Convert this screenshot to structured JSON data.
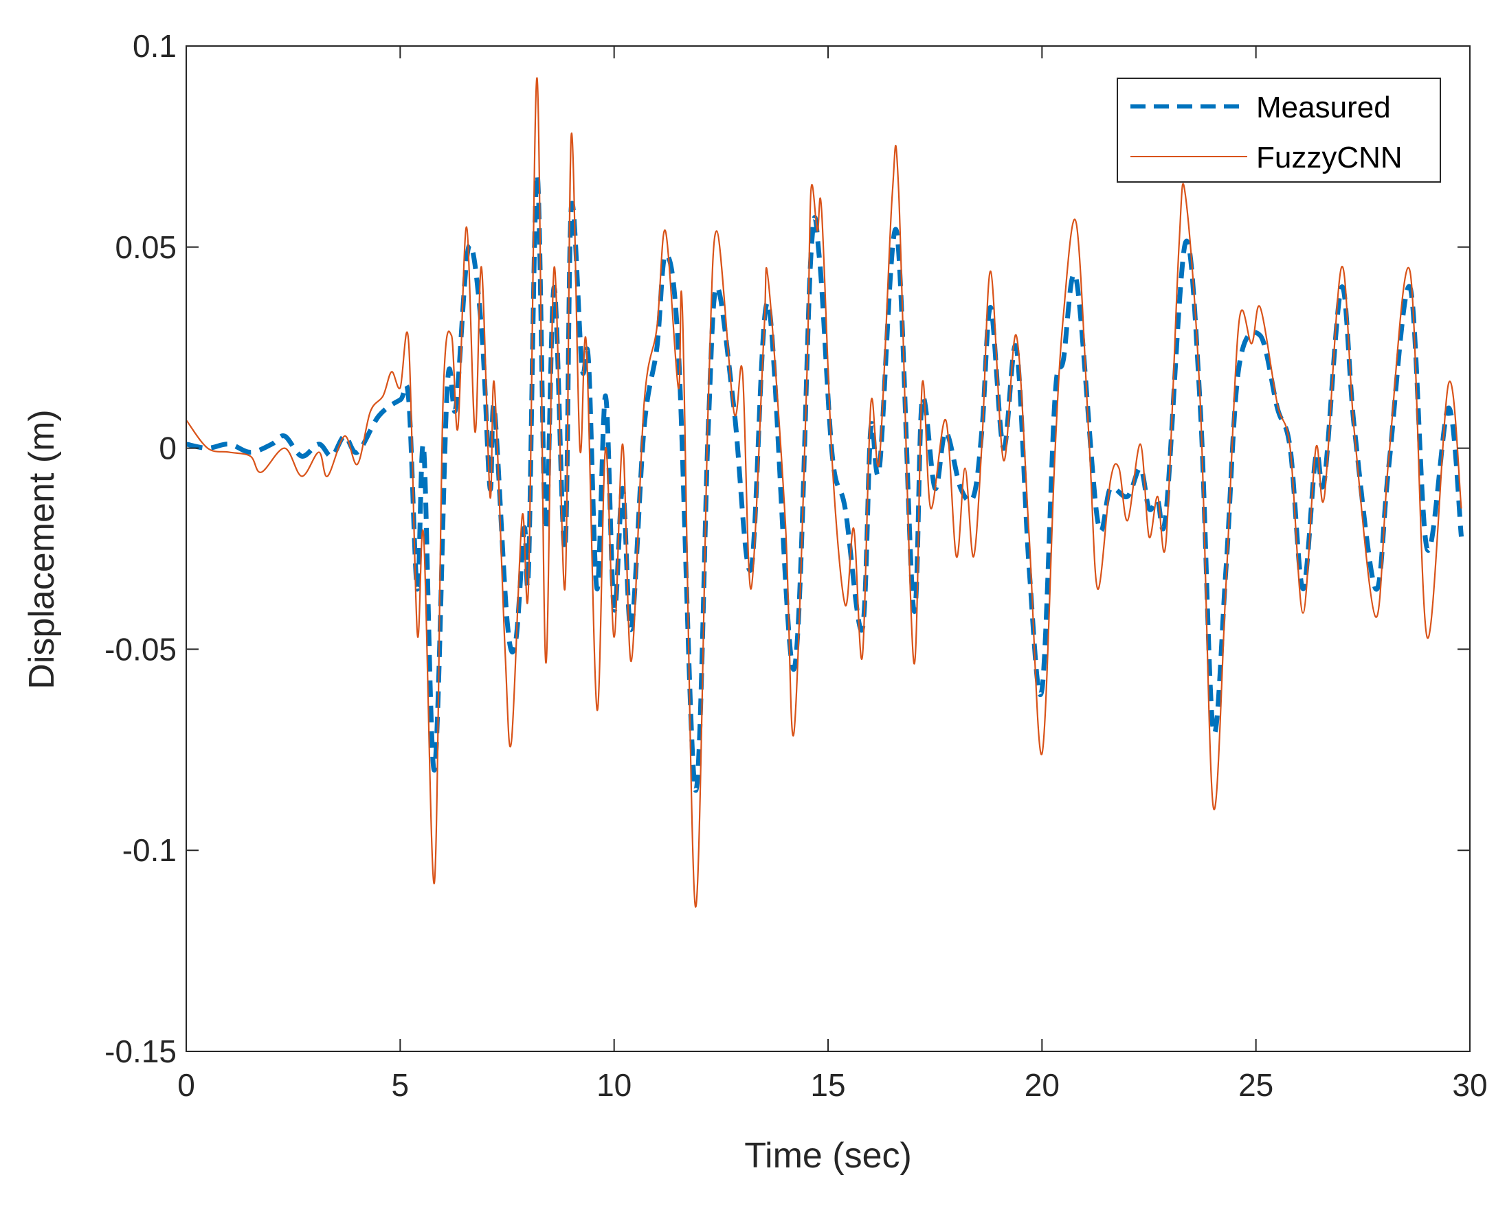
{
  "chart_data": {
    "type": "line",
    "title": "",
    "xlabel": "Time (sec)",
    "ylabel": "Displacement (m)",
    "xlim": [
      0,
      30
    ],
    "ylim": [
      -0.15,
      0.1
    ],
    "xticks": [
      "0",
      "5",
      "10",
      "15",
      "20",
      "25",
      "30"
    ],
    "yticks": [
      "0.1",
      "0.05",
      "0",
      "-0.05",
      "-0.1",
      "-0.15"
    ],
    "grid": false,
    "legend_position": "top-right",
    "series": [
      {
        "name": "Measured",
        "color": "#0072BD",
        "style": "dashed",
        "points": [
          [
            0,
            0.001
          ],
          [
            0.5,
            0
          ],
          [
            1,
            0.001
          ],
          [
            1.5,
            -0.001
          ],
          [
            2,
            0.001
          ],
          [
            2.3,
            0.003
          ],
          [
            2.7,
            -0.002
          ],
          [
            3.1,
            0.001
          ],
          [
            3.4,
            -0.002
          ],
          [
            3.7,
            0.003
          ],
          [
            4.0,
            -0.001
          ],
          [
            4.5,
            0.008
          ],
          [
            5.0,
            0.012
          ],
          [
            5.2,
            0.012
          ],
          [
            5.4,
            -0.035
          ],
          [
            5.55,
            0
          ],
          [
            5.8,
            -0.08
          ],
          [
            6.1,
            0.015
          ],
          [
            6.3,
            0.01
          ],
          [
            6.6,
            0.05
          ],
          [
            6.9,
            0.03
          ],
          [
            7.1,
            -0.01
          ],
          [
            7.2,
            0.01
          ],
          [
            7.5,
            -0.043
          ],
          [
            7.7,
            -0.048
          ],
          [
            7.9,
            -0.02
          ],
          [
            8.0,
            -0.03
          ],
          [
            8.2,
            0.068
          ],
          [
            8.4,
            -0.02
          ],
          [
            8.6,
            0.04
          ],
          [
            8.85,
            -0.025
          ],
          [
            9.0,
            0.06
          ],
          [
            9.25,
            0.02
          ],
          [
            9.4,
            0.022
          ],
          [
            9.6,
            -0.035
          ],
          [
            9.8,
            0.013
          ],
          [
            10.0,
            -0.04
          ],
          [
            10.2,
            -0.01
          ],
          [
            10.4,
            -0.045
          ],
          [
            10.7,
            0.005
          ],
          [
            11.0,
            0.025
          ],
          [
            11.2,
            0.048
          ],
          [
            11.5,
            0.025
          ],
          [
            11.9,
            -0.085
          ],
          [
            12.2,
            0.005
          ],
          [
            12.4,
            0.04
          ],
          [
            12.8,
            0.01
          ],
          [
            13.2,
            -0.03
          ],
          [
            13.6,
            0.036
          ],
          [
            14.2,
            -0.055
          ],
          [
            14.6,
            0.048
          ],
          [
            14.8,
            0.047
          ],
          [
            15.1,
            -0.002
          ],
          [
            15.4,
            -0.015
          ],
          [
            15.8,
            -0.045
          ],
          [
            16.0,
            0.005
          ],
          [
            16.2,
            -0.005
          ],
          [
            16.6,
            0.054
          ],
          [
            17.0,
            -0.04
          ],
          [
            17.2,
            0.012
          ],
          [
            17.5,
            -0.01
          ],
          [
            17.75,
            0.004
          ],
          [
            18.1,
            -0.01
          ],
          [
            18.4,
            -0.012
          ],
          [
            18.6,
            0.005
          ],
          [
            18.8,
            0.035
          ],
          [
            19.1,
            0
          ],
          [
            19.4,
            0.025
          ],
          [
            19.7,
            -0.03
          ],
          [
            20.0,
            -0.06
          ],
          [
            20.3,
            0.012
          ],
          [
            20.5,
            0.022
          ],
          [
            20.8,
            0.042
          ],
          [
            21.3,
            -0.018
          ],
          [
            21.6,
            -0.01
          ],
          [
            22.0,
            -0.012
          ],
          [
            22.3,
            -0.005
          ],
          [
            22.5,
            -0.015
          ],
          [
            22.7,
            -0.013
          ],
          [
            22.9,
            -0.016
          ],
          [
            23.35,
            0.051
          ],
          [
            23.7,
            0.01
          ],
          [
            24.0,
            -0.07
          ],
          [
            24.3,
            -0.03
          ],
          [
            24.6,
            0.02
          ],
          [
            25.1,
            0.028
          ],
          [
            25.5,
            0.01
          ],
          [
            25.8,
            0
          ],
          [
            26.1,
            -0.035
          ],
          [
            26.4,
            -0.002
          ],
          [
            26.6,
            -0.008
          ],
          [
            27.0,
            0.04
          ],
          [
            27.3,
            0.005
          ],
          [
            27.8,
            -0.035
          ],
          [
            28.1,
            -0.005
          ],
          [
            28.6,
            0.04
          ],
          [
            29.0,
            -0.025
          ],
          [
            29.5,
            0.01
          ],
          [
            29.8,
            -0.022
          ]
        ]
      },
      {
        "name": "FuzzyCNN",
        "color": "#D95319",
        "style": "solid",
        "points": [
          [
            0,
            0.007
          ],
          [
            0.5,
            0
          ],
          [
            1.0,
            -0.001
          ],
          [
            1.5,
            -0.002
          ],
          [
            1.75,
            -0.006
          ],
          [
            2.3,
            0
          ],
          [
            2.7,
            -0.007
          ],
          [
            3.1,
            -0.001
          ],
          [
            3.3,
            -0.007
          ],
          [
            3.7,
            0.003
          ],
          [
            4.0,
            -0.004
          ],
          [
            4.3,
            0.009
          ],
          [
            4.6,
            0.013
          ],
          [
            4.8,
            0.019
          ],
          [
            5.0,
            0.015
          ],
          [
            5.2,
            0.026
          ],
          [
            5.4,
            -0.046
          ],
          [
            5.55,
            -0.022
          ],
          [
            5.8,
            -0.108
          ],
          [
            6.0,
            0.011
          ],
          [
            6.2,
            0.028
          ],
          [
            6.35,
            0.005
          ],
          [
            6.55,
            0.055
          ],
          [
            6.75,
            0.004
          ],
          [
            6.9,
            0.045
          ],
          [
            7.1,
            -0.012
          ],
          [
            7.2,
            0.016
          ],
          [
            7.45,
            -0.05
          ],
          [
            7.6,
            -0.073
          ],
          [
            7.85,
            -0.017
          ],
          [
            8.0,
            -0.034
          ],
          [
            8.2,
            0.092
          ],
          [
            8.4,
            -0.053
          ],
          [
            8.6,
            0.045
          ],
          [
            8.85,
            -0.035
          ],
          [
            9.0,
            0.078
          ],
          [
            9.2,
            0
          ],
          [
            9.35,
            0.026
          ],
          [
            9.6,
            -0.065
          ],
          [
            9.8,
            0
          ],
          [
            10.0,
            -0.047
          ],
          [
            10.2,
            0.001
          ],
          [
            10.4,
            -0.053
          ],
          [
            10.7,
            0.011
          ],
          [
            11.0,
            0.03
          ],
          [
            11.2,
            0.054
          ],
          [
            11.5,
            0.015
          ],
          [
            11.6,
            0.033
          ],
          [
            11.9,
            -0.114
          ],
          [
            12.2,
            0.011
          ],
          [
            12.4,
            0.054
          ],
          [
            12.8,
            0.009
          ],
          [
            13.0,
            0.019
          ],
          [
            13.2,
            -0.035
          ],
          [
            13.5,
            0.028
          ],
          [
            13.6,
            0.042
          ],
          [
            14.0,
            -0.018
          ],
          [
            14.2,
            -0.071
          ],
          [
            14.5,
            0.016
          ],
          [
            14.6,
            0.064
          ],
          [
            14.75,
            0.054
          ],
          [
            14.85,
            0.059
          ],
          [
            15.1,
            -0.004
          ],
          [
            15.4,
            -0.039
          ],
          [
            15.6,
            -0.02
          ],
          [
            15.8,
            -0.052
          ],
          [
            16.0,
            0.011
          ],
          [
            16.2,
            -0.003
          ],
          [
            16.5,
            0.063
          ],
          [
            16.65,
            0.064
          ],
          [
            17.0,
            -0.053
          ],
          [
            17.2,
            0.016
          ],
          [
            17.4,
            -0.015
          ],
          [
            17.75,
            0.007
          ],
          [
            18.0,
            -0.027
          ],
          [
            18.2,
            -0.005
          ],
          [
            18.4,
            -0.027
          ],
          [
            18.6,
            0.002
          ],
          [
            18.8,
            0.044
          ],
          [
            19.1,
            -0.003
          ],
          [
            19.4,
            0.028
          ],
          [
            19.7,
            -0.022
          ],
          [
            20.0,
            -0.076
          ],
          [
            20.3,
            -0.002
          ],
          [
            20.5,
            0.033
          ],
          [
            20.8,
            0.056
          ],
          [
            21.1,
            0.002
          ],
          [
            21.3,
            -0.035
          ],
          [
            21.6,
            -0.008
          ],
          [
            21.8,
            -0.005
          ],
          [
            22.0,
            -0.018
          ],
          [
            22.3,
            0.001
          ],
          [
            22.5,
            -0.022
          ],
          [
            22.7,
            -0.012
          ],
          [
            22.9,
            -0.023
          ],
          [
            23.2,
            0.05
          ],
          [
            23.35,
            0.063
          ],
          [
            23.7,
            0.011
          ],
          [
            24.0,
            -0.089
          ],
          [
            24.3,
            -0.034
          ],
          [
            24.6,
            0.031
          ],
          [
            24.9,
            0.026
          ],
          [
            25.1,
            0.035
          ],
          [
            25.5,
            0.011
          ],
          [
            25.8,
            0
          ],
          [
            26.1,
            -0.041
          ],
          [
            26.4,
            0
          ],
          [
            26.6,
            -0.012
          ],
          [
            27.0,
            0.045
          ],
          [
            27.3,
            0.004
          ],
          [
            27.8,
            -0.042
          ],
          [
            28.1,
            -0.003
          ],
          [
            28.6,
            0.044
          ],
          [
            29.0,
            -0.047
          ],
          [
            29.5,
            0.016
          ],
          [
            29.8,
            -0.015
          ]
        ]
      }
    ]
  }
}
